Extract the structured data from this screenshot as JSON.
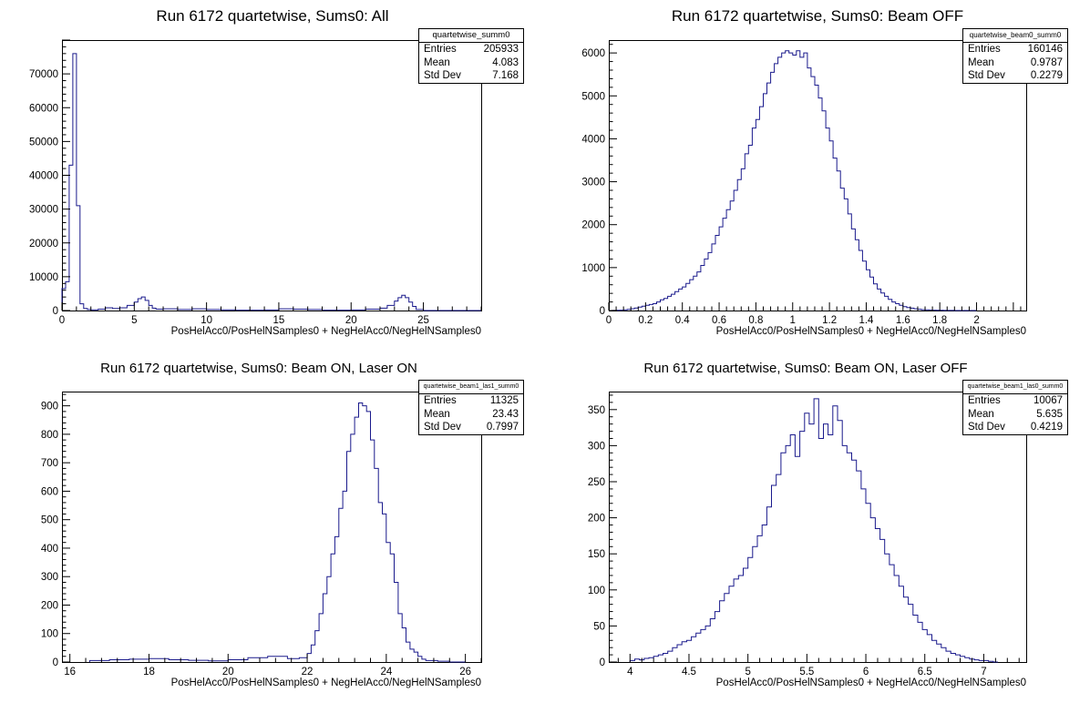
{
  "chart_data": [
    {
      "type": "histogram",
      "title": "Run 6172 quartetwise, Sums0: All",
      "xlabel": "PosHelAcc0/PosHelNSamples0 + NegHelAcc0/NegHelNSamples0",
      "ylabel": "",
      "xlim": [
        0,
        29
      ],
      "ylim": [
        0,
        80000
      ],
      "xticks": [
        0,
        5,
        10,
        15,
        20,
        25
      ],
      "yticks": [
        0,
        10000,
        20000,
        30000,
        40000,
        50000,
        60000,
        70000
      ],
      "stats": {
        "name": "quartetwise_summ0",
        "Entries": "205933",
        "Mean": "4.083",
        "Std Dev": "7.168"
      },
      "bins": {
        "edges": [
          0,
          0.25,
          0.5,
          0.75,
          1.0,
          1.25,
          1.5,
          1.75,
          2.0,
          2.5,
          3.0,
          3.5,
          4.0,
          4.5,
          5.0,
          5.25,
          5.5,
          5.75,
          6.0,
          6.25,
          6.5,
          7.0,
          8.0,
          9.0,
          10.0,
          11.0,
          12.0,
          14.0,
          15.0,
          16.0,
          17.0,
          18.0,
          20.0,
          21.0,
          22.0,
          22.5,
          23.0,
          23.25,
          23.5,
          23.75,
          24.0,
          24.25,
          24.5,
          25.0,
          29.0
        ],
        "values": [
          6500,
          8500,
          43000,
          76000,
          31000,
          2000,
          600,
          300,
          200,
          400,
          800,
          600,
          800,
          1500,
          2500,
          3500,
          4000,
          3000,
          1500,
          700,
          400,
          500,
          300,
          500,
          300,
          200,
          100,
          150,
          500,
          400,
          300,
          100,
          150,
          400,
          700,
          1500,
          2800,
          3800,
          4500,
          3800,
          2500,
          1200,
          300,
          0
        ]
      }
    },
    {
      "type": "histogram",
      "title": "Run 6172 quartetwise, Sums0: Beam OFF",
      "xlabel": "PosHelAcc0/PosHelNSamples0 + NegHelAcc0/NegHelNSamples0",
      "ylabel": "",
      "xlim": [
        0,
        2.27
      ],
      "ylim": [
        0,
        6300
      ],
      "xticks": [
        0,
        0.2,
        0.4,
        0.6,
        0.8,
        1,
        1.2,
        1.4,
        1.6,
        1.8,
        2
      ],
      "yticks": [
        0,
        1000,
        2000,
        3000,
        4000,
        5000,
        6000
      ],
      "stats": {
        "name": "quartetwise_beam0_summ0",
        "Entries": "160146",
        "Mean": "0.9787",
        "Std Dev": "0.2279"
      },
      "bins": {
        "edges": [
          0.0,
          0.02,
          0.04,
          0.06,
          0.08,
          0.1,
          0.12,
          0.14,
          0.16,
          0.18,
          0.2,
          0.22,
          0.24,
          0.26,
          0.28,
          0.3,
          0.32,
          0.34,
          0.36,
          0.38,
          0.4,
          0.42,
          0.44,
          0.46,
          0.48,
          0.5,
          0.52,
          0.54,
          0.56,
          0.58,
          0.6,
          0.62,
          0.64,
          0.66,
          0.68,
          0.7,
          0.72,
          0.74,
          0.76,
          0.78,
          0.8,
          0.82,
          0.84,
          0.86,
          0.88,
          0.9,
          0.92,
          0.94,
          0.96,
          0.98,
          1.0,
          1.02,
          1.04,
          1.06,
          1.08,
          1.1,
          1.12,
          1.14,
          1.16,
          1.18,
          1.2,
          1.22,
          1.24,
          1.26,
          1.28,
          1.3,
          1.32,
          1.34,
          1.36,
          1.38,
          1.4,
          1.42,
          1.44,
          1.46,
          1.48,
          1.5,
          1.52,
          1.54,
          1.56,
          1.58,
          1.6,
          1.62,
          1.64,
          1.66,
          1.68,
          1.7,
          1.72,
          1.74,
          1.76,
          1.78,
          1.8,
          1.82,
          1.84,
          1.86,
          1.88,
          1.9,
          1.92,
          1.94,
          1.96,
          1.98,
          2.0
        ],
        "values": [
          0,
          2,
          5,
          8,
          15,
          25,
          40,
          60,
          80,
          100,
          120,
          140,
          160,
          200,
          250,
          280,
          330,
          380,
          440,
          500,
          550,
          630,
          720,
          800,
          900,
          1050,
          1200,
          1350,
          1550,
          1750,
          1950,
          2150,
          2350,
          2550,
          2800,
          3050,
          3300,
          3650,
          3850,
          4250,
          4450,
          4750,
          5050,
          5300,
          5550,
          5750,
          5900,
          6000,
          6050,
          6000,
          5950,
          6050,
          5900,
          6000,
          5650,
          5450,
          5250,
          4950,
          4650,
          4250,
          3950,
          3550,
          3250,
          2850,
          2600,
          2250,
          1900,
          1650,
          1400,
          1150,
          950,
          780,
          620,
          500,
          410,
          330,
          260,
          200,
          160,
          120,
          90,
          70,
          55,
          40,
          30,
          20,
          15,
          10,
          8,
          5,
          4,
          3,
          2,
          2,
          1,
          1,
          0,
          0,
          0,
          0
        ]
      }
    },
    {
      "type": "histogram",
      "title": "Run 6172 quartetwise, Sums0: Beam ON, Laser ON",
      "xlabel": "PosHelAcc0/PosHelNSamples0 + NegHelAcc0/NegHelNSamples0",
      "ylabel": "",
      "xlim": [
        15.8,
        26.4
      ],
      "ylim": [
        0,
        950
      ],
      "xticks": [
        16,
        18,
        20,
        22,
        24,
        26
      ],
      "yticks": [
        0,
        100,
        200,
        300,
        400,
        500,
        600,
        700,
        800,
        900
      ],
      "stats": {
        "name": "quartetwise_beam1_las1_summ0",
        "Entries": "11325",
        "Mean": "23.43",
        "Std Dev": "0.7997"
      },
      "bins": {
        "edges": [
          16.5,
          17.0,
          17.5,
          18.0,
          18.5,
          19.0,
          19.5,
          20.0,
          20.5,
          21.0,
          21.5,
          21.8,
          22.0,
          22.1,
          22.2,
          22.3,
          22.4,
          22.5,
          22.6,
          22.7,
          22.8,
          22.9,
          23.0,
          23.1,
          23.2,
          23.3,
          23.4,
          23.5,
          23.6,
          23.7,
          23.8,
          23.9,
          24.0,
          24.1,
          24.2,
          24.3,
          24.4,
          24.5,
          24.6,
          24.7,
          24.8,
          24.9,
          25.0,
          25.3,
          25.6,
          26.0
        ],
        "values": [
          5,
          8,
          10,
          12,
          8,
          6,
          4,
          8,
          15,
          20,
          12,
          15,
          30,
          60,
          110,
          170,
          240,
          300,
          380,
          440,
          540,
          600,
          740,
          800,
          860,
          910,
          900,
          880,
          780,
          680,
          560,
          520,
          420,
          380,
          280,
          170,
          120,
          70,
          45,
          35,
          20,
          10,
          5,
          3,
          0
        ]
      }
    },
    {
      "type": "histogram",
      "title": "Run 6172 quartetwise, Sums0: Beam ON, Laser OFF",
      "xlabel": "PosHelAcc0/PosHelNSamples0 + NegHelAcc0/NegHelNSamples0",
      "ylabel": "",
      "xlim": [
        3.82,
        7.36
      ],
      "ylim": [
        0,
        375
      ],
      "xticks": [
        4,
        4.5,
        5,
        5.5,
        6,
        6.5,
        7
      ],
      "yticks": [
        0,
        50,
        100,
        150,
        200,
        250,
        300,
        350
      ],
      "stats": {
        "name": "quartetwise_beam1_las0_summ0",
        "Entries": "10067",
        "Mean": "5.635",
        "Std Dev": "0.4219"
      },
      "bins": {
        "edges": [
          4.0,
          4.04,
          4.08,
          4.12,
          4.16,
          4.2,
          4.24,
          4.28,
          4.32,
          4.36,
          4.4,
          4.44,
          4.48,
          4.52,
          4.56,
          4.6,
          4.64,
          4.68,
          4.72,
          4.76,
          4.8,
          4.84,
          4.88,
          4.92,
          4.96,
          5.0,
          5.04,
          5.08,
          5.12,
          5.16,
          5.2,
          5.24,
          5.28,
          5.32,
          5.36,
          5.4,
          5.44,
          5.48,
          5.52,
          5.56,
          5.6,
          5.64,
          5.68,
          5.72,
          5.76,
          5.8,
          5.84,
          5.88,
          5.92,
          5.96,
          6.0,
          6.04,
          6.08,
          6.12,
          6.16,
          6.2,
          6.24,
          6.28,
          6.32,
          6.36,
          6.4,
          6.44,
          6.48,
          6.52,
          6.56,
          6.6,
          6.64,
          6.68,
          6.72,
          6.76,
          6.8,
          6.84,
          6.88,
          6.92,
          6.96,
          7.0,
          7.04,
          7.08,
          7.12
        ],
        "values": [
          2,
          4,
          3,
          5,
          6,
          8,
          10,
          12,
          15,
          20,
          24,
          28,
          30,
          35,
          40,
          45,
          50,
          60,
          70,
          85,
          95,
          105,
          115,
          120,
          130,
          145,
          160,
          175,
          190,
          215,
          245,
          260,
          290,
          300,
          315,
          285,
          320,
          345,
          330,
          365,
          310,
          330,
          315,
          355,
          335,
          300,
          290,
          280,
          265,
          240,
          220,
          200,
          185,
          170,
          150,
          135,
          120,
          105,
          90,
          80,
          65,
          55,
          45,
          38,
          30,
          25,
          20,
          15,
          12,
          10,
          8,
          6,
          4,
          3,
          2,
          2,
          1,
          0
        ]
      }
    }
  ]
}
